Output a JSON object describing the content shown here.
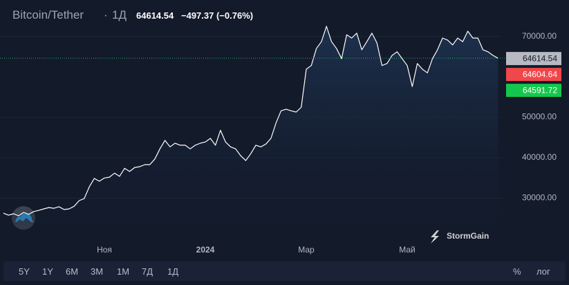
{
  "header": {
    "symbol": "Bitcoin/Tether",
    "interval": "1Д",
    "price": "64614.54",
    "change": "−497.37 (−0.76%)"
  },
  "chart_data": {
    "type": "line",
    "categories": [
      null,
      null,
      null,
      null,
      null,
      null,
      null,
      null,
      null,
      null,
      null,
      null,
      null,
      null,
      null,
      null,
      null,
      null,
      null,
      null,
      "Ноя",
      null,
      null,
      null,
      null,
      null,
      null,
      null,
      null,
      null,
      null,
      null,
      null,
      null,
      null,
      null,
      null,
      null,
      null,
      null,
      "2024",
      null,
      null,
      null,
      null,
      null,
      null,
      null,
      null,
      null,
      null,
      null,
      null,
      null,
      null,
      null,
      null,
      null,
      null,
      null,
      "Мар",
      null,
      null,
      null,
      null,
      null,
      null,
      null,
      null,
      null,
      null,
      null,
      null,
      null,
      null,
      null,
      null,
      null,
      null,
      null,
      "Май",
      null,
      null,
      null,
      null,
      null,
      null,
      null,
      null,
      null,
      null,
      null,
      null,
      null,
      null,
      null,
      null,
      null,
      null
    ],
    "values": [
      26300,
      25800,
      26150,
      25650,
      26500,
      26000,
      26700,
      27000,
      27350,
      27700,
      27500,
      27900,
      27200,
      27350,
      28000,
      29400,
      29900,
      32800,
      34900,
      34200,
      35000,
      35200,
      36200,
      35400,
      37400,
      36600,
      37600,
      37800,
      38300,
      38300,
      39700,
      42200,
      44300,
      42700,
      43600,
      43100,
      43100,
      42200,
      43100,
      43600,
      43900,
      44800,
      43100,
      46800,
      43900,
      42700,
      42200,
      40500,
      39300,
      41000,
      43100,
      42700,
      43400,
      44800,
      48600,
      51600,
      52000,
      51600,
      51300,
      52500,
      61900,
      62800,
      67000,
      68700,
      72500,
      68700,
      67000,
      64500,
      70400,
      69600,
      70800,
      66700,
      68700,
      70800,
      68400,
      62800,
      63300,
      65300,
      66200,
      64500,
      62800,
      57600,
      63300,
      61900,
      61000,
      64500,
      66700,
      69600,
      69100,
      67900,
      69600,
      68700,
      71300,
      69600,
      69600,
      66700,
      66200,
      65300,
      64600
    ],
    "color": "#ffffff",
    "ylim": [
      20000,
      79000
    ],
    "yticks": [
      {
        "value": 30000,
        "label": "30000.00"
      },
      {
        "value": 40000,
        "label": "40000.00"
      },
      {
        "value": 50000,
        "label": "50000.00"
      },
      {
        "value": 70000,
        "label": "70000.00"
      }
    ],
    "grid": true,
    "price_labels": [
      {
        "value": 64614.54,
        "color": "#b7bac3"
      },
      {
        "value": 64604.64,
        "color": "#f0474b"
      },
      {
        "value": 64591.72,
        "color": "#14c74c"
      }
    ]
  },
  "brand": "StormGain",
  "toolbar": {
    "ranges": [
      "5Y",
      "1Y",
      "6M",
      "3M",
      "1M",
      "7Д",
      "1Д"
    ],
    "percent": "%",
    "log": "лог"
  }
}
